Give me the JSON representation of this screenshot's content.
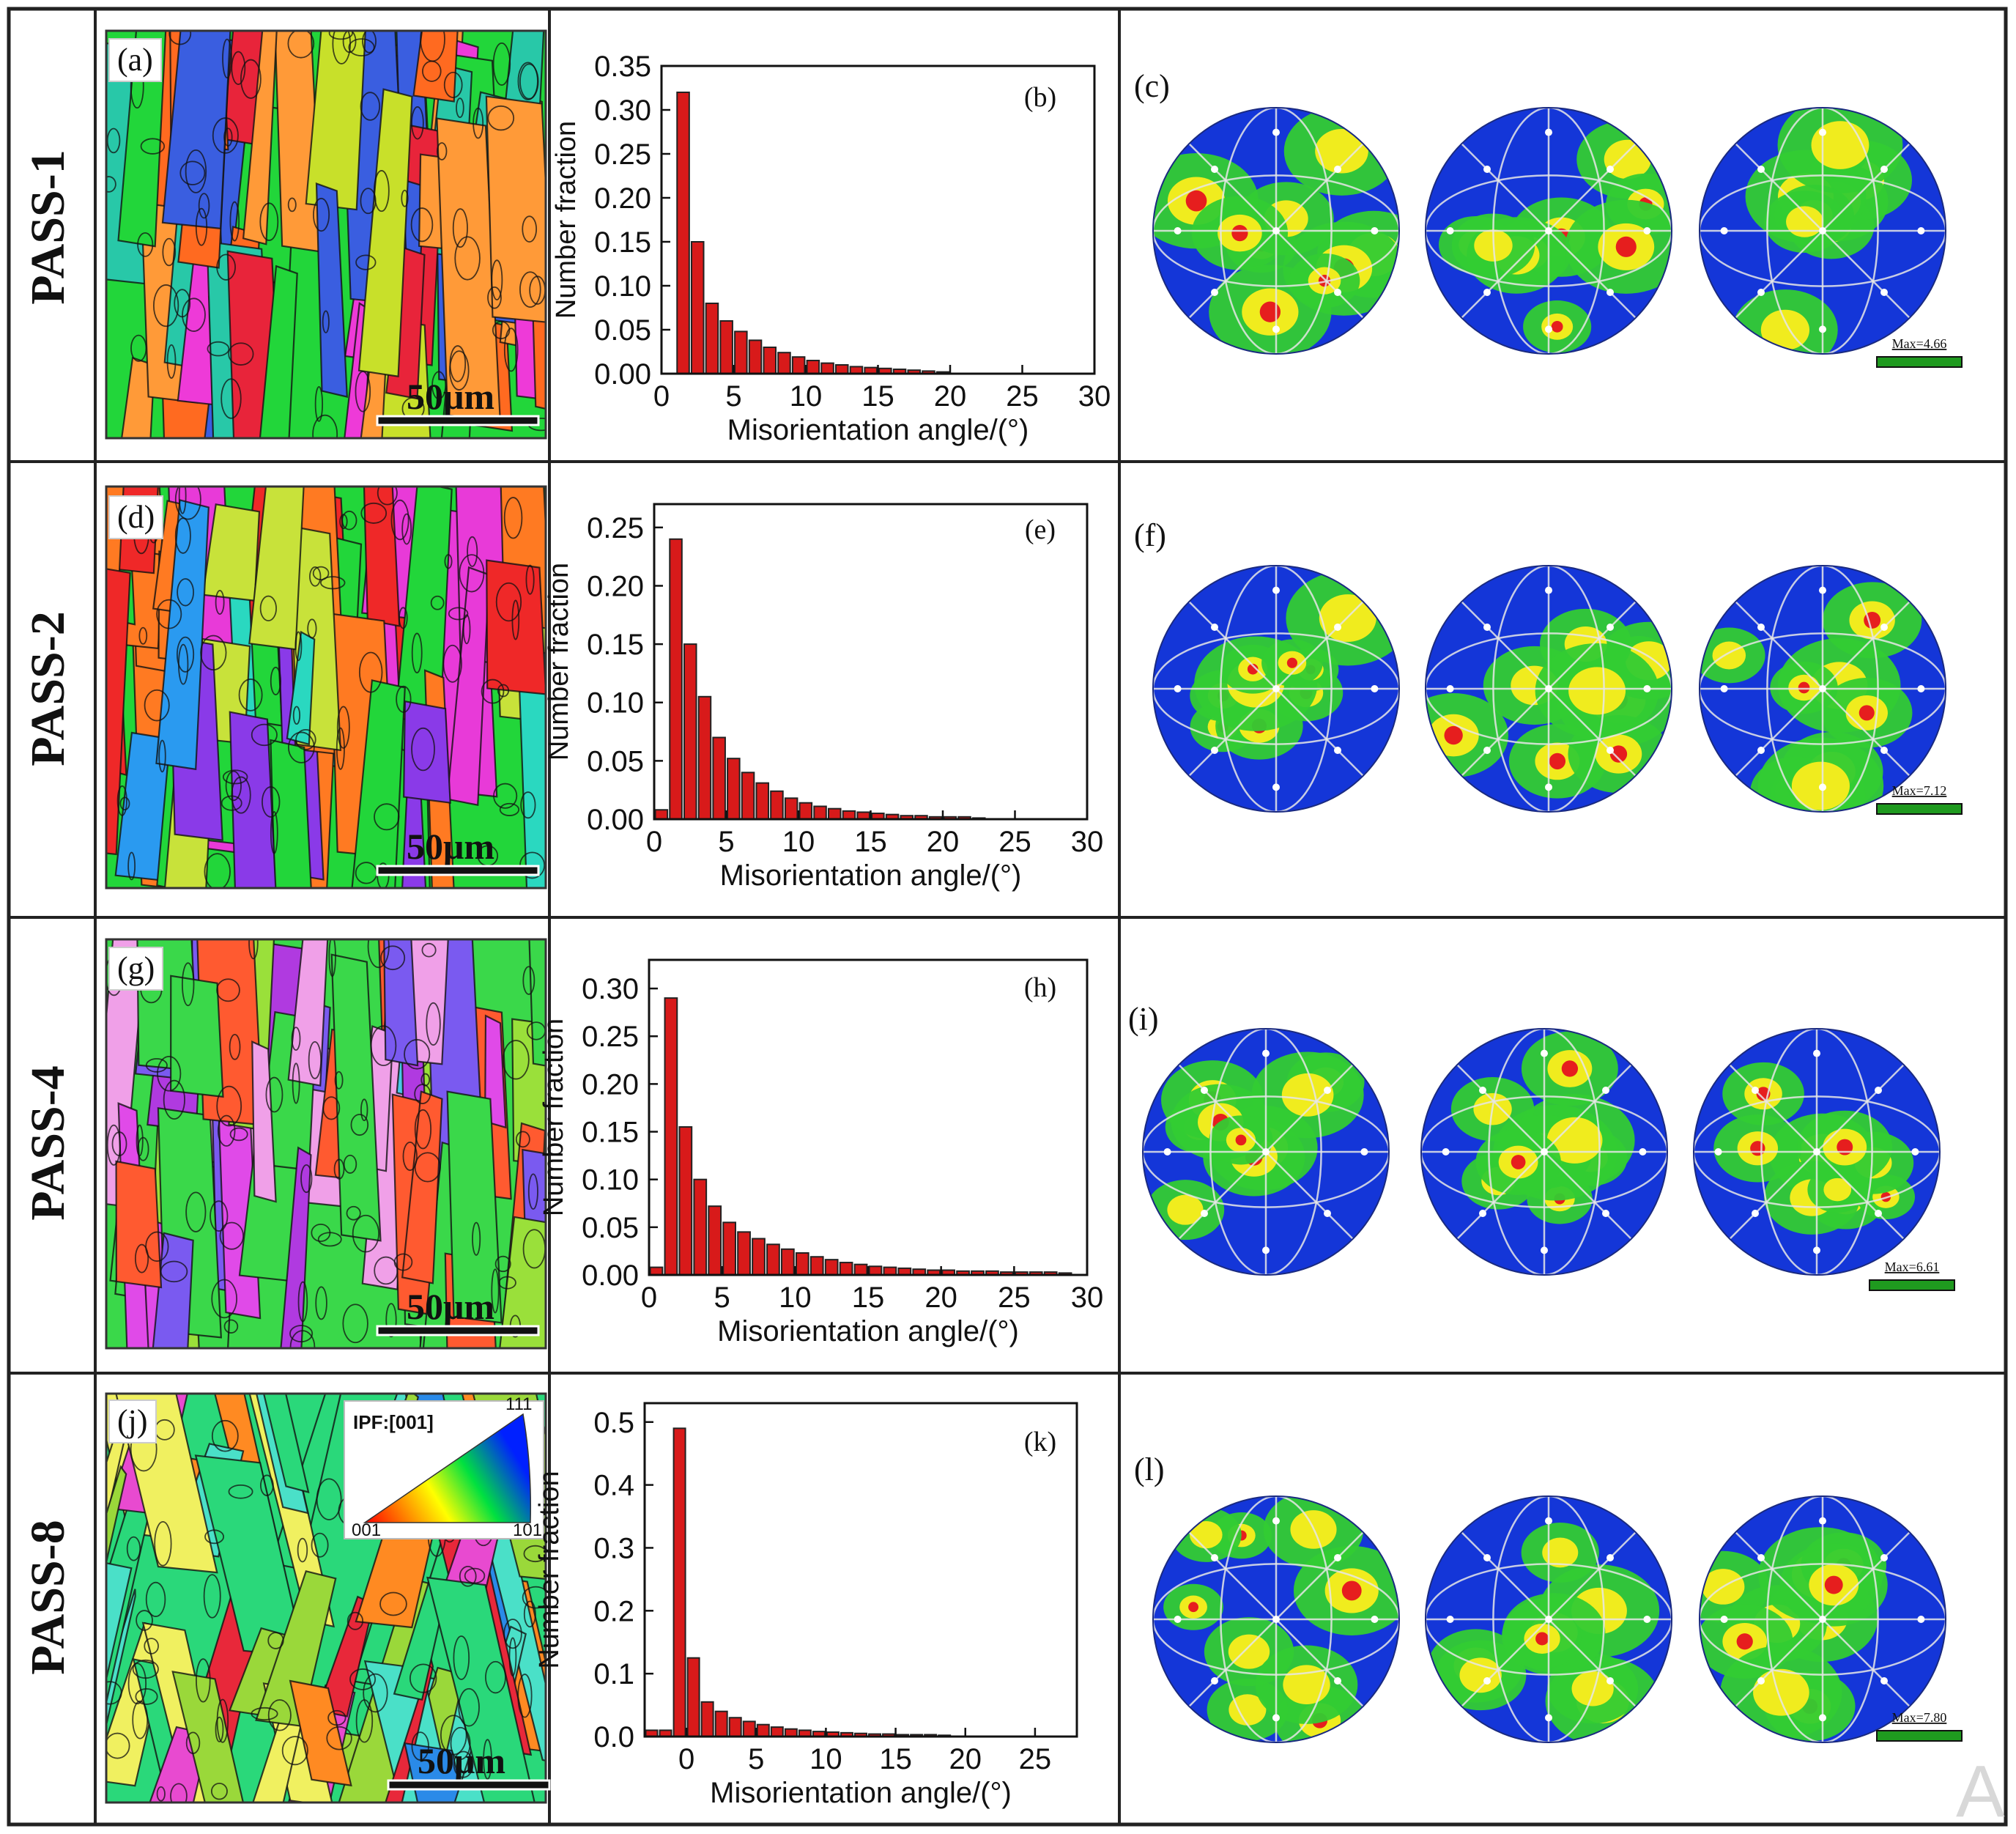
{
  "rows": [
    {
      "label": "PASS-1",
      "ebsd_panel": "(a)",
      "chart_panel": "(b)",
      "pf_panel": "(c)",
      "scale_bar": "50μm",
      "pf_max": "Max=4.66",
      "chart_data": {
        "type": "bar",
        "xlabel": "Misorientation angle/(°)",
        "ylabel": "Number fraction",
        "xlim": [
          0,
          30
        ],
        "ylim": [
          0,
          0.35
        ],
        "xticks": [
          "0",
          "5",
          "10",
          "15",
          "20",
          "25",
          "30"
        ],
        "yticks": [
          "0.00",
          "0.05",
          "0.10",
          "0.15",
          "0.20",
          "0.25",
          "0.30",
          "0.35"
        ],
        "x": [
          1.5,
          2.5,
          3.5,
          4.5,
          5.5,
          6.5,
          7.5,
          8.5,
          9.5,
          10.5,
          11.5,
          12.5,
          13.5,
          14.5,
          15.5,
          16.5,
          17.5,
          18.5,
          19.5
        ],
        "values": [
          0.32,
          0.15,
          0.08,
          0.06,
          0.048,
          0.038,
          0.03,
          0.024,
          0.019,
          0.015,
          0.012,
          0.01,
          0.008,
          0.007,
          0.006,
          0.005,
          0.004,
          0.003,
          0.002
        ]
      }
    },
    {
      "label": "PASS-2",
      "ebsd_panel": "(d)",
      "chart_panel": "(e)",
      "pf_panel": "(f)",
      "scale_bar": "50μm",
      "pf_max": "Max=7.12",
      "chart_data": {
        "type": "bar",
        "xlabel": "Misorientation angle/(°)",
        "ylabel": "Number fraction",
        "xlim": [
          0,
          30
        ],
        "ylim": [
          0,
          0.27
        ],
        "xticks": [
          "0",
          "5",
          "10",
          "15",
          "20",
          "25",
          "30"
        ],
        "yticks": [
          "0.00",
          "0.05",
          "0.10",
          "0.15",
          "0.20",
          "0.25"
        ],
        "x": [
          0.5,
          1.5,
          2.5,
          3.5,
          4.5,
          5.5,
          6.5,
          7.5,
          8.5,
          9.5,
          10.5,
          11.5,
          12.5,
          13.5,
          14.5,
          15.5,
          16.5,
          17.5,
          18.5,
          19.5,
          20.5,
          21.5,
          22.5
        ],
        "values": [
          0.008,
          0.24,
          0.15,
          0.105,
          0.07,
          0.052,
          0.04,
          0.031,
          0.024,
          0.018,
          0.014,
          0.011,
          0.009,
          0.007,
          0.006,
          0.005,
          0.004,
          0.003,
          0.003,
          0.002,
          0.002,
          0.002,
          0.001
        ]
      }
    },
    {
      "label": "PASS-4",
      "ebsd_panel": "(g)",
      "chart_panel": "(h)",
      "pf_panel": "(i)",
      "scale_bar": "50μm",
      "pf_max": "Max=6.61",
      "chart_data": {
        "type": "bar",
        "xlabel": "Misorientation angle/(°)",
        "ylabel": "Number fraction",
        "xlim": [
          0,
          30
        ],
        "ylim": [
          0,
          0.33
        ],
        "xticks": [
          "0",
          "5",
          "10",
          "15",
          "20",
          "25",
          "30"
        ],
        "yticks": [
          "0.00",
          "0.05",
          "0.10",
          "0.15",
          "0.20",
          "0.25",
          "0.30"
        ],
        "x": [
          0.5,
          1.5,
          2.5,
          3.5,
          4.5,
          5.5,
          6.5,
          7.5,
          8.5,
          9.5,
          10.5,
          11.5,
          12.5,
          13.5,
          14.5,
          15.5,
          16.5,
          17.5,
          18.5,
          19.5,
          20.5,
          21.5,
          22.5,
          23.5,
          24.5,
          25.5,
          26.5,
          27.5,
          28.5
        ],
        "values": [
          0.008,
          0.29,
          0.155,
          0.1,
          0.072,
          0.055,
          0.045,
          0.038,
          0.032,
          0.027,
          0.023,
          0.019,
          0.016,
          0.013,
          0.011,
          0.009,
          0.008,
          0.007,
          0.006,
          0.005,
          0.005,
          0.004,
          0.004,
          0.004,
          0.003,
          0.003,
          0.003,
          0.003,
          0.002
        ]
      }
    },
    {
      "label": "PASS-8",
      "ebsd_panel": "(j)",
      "chart_panel": "(k)",
      "pf_panel": "(l)",
      "scale_bar": "50μm",
      "pf_max": "Max=7.80",
      "ipf_key": {
        "title": "IPF:[001]",
        "corner_top": "111",
        "corner_left": "001",
        "corner_right": "101"
      },
      "chart_data": {
        "type": "bar",
        "xlabel": "Misorientation angle/(°)",
        "ylabel": "Number fraction",
        "xlim": [
          -3,
          28
        ],
        "ylim": [
          0,
          0.53
        ],
        "xticks": [
          "0",
          "5",
          "10",
          "15",
          "20",
          "25"
        ],
        "yticks": [
          "0.0",
          "0.1",
          "0.2",
          "0.3",
          "0.4",
          "0.5"
        ],
        "x": [
          -2.5,
          -1.5,
          -0.5,
          0.5,
          1.5,
          2.5,
          3.5,
          4.5,
          5.5,
          6.5,
          7.5,
          8.5,
          9.5,
          10.5,
          11.5,
          12.5,
          13.5,
          14.5,
          15.5,
          16.5,
          17.5,
          18.5
        ],
        "values": [
          0.01,
          0.01,
          0.49,
          0.125,
          0.055,
          0.04,
          0.03,
          0.024,
          0.019,
          0.015,
          0.012,
          0.01,
          0.008,
          0.007,
          0.006,
          0.005,
          0.004,
          0.004,
          0.003,
          0.003,
          0.003,
          0.002
        ]
      }
    }
  ],
  "watermark": "A",
  "colors": {
    "bar": "#d81a1a",
    "pf_background": "#1436d8",
    "pf_green": "#33cc33",
    "pf_yellow": "#f0ec1e",
    "pf_red": "#e61e1e",
    "scale_green": "#1f9a1f"
  }
}
